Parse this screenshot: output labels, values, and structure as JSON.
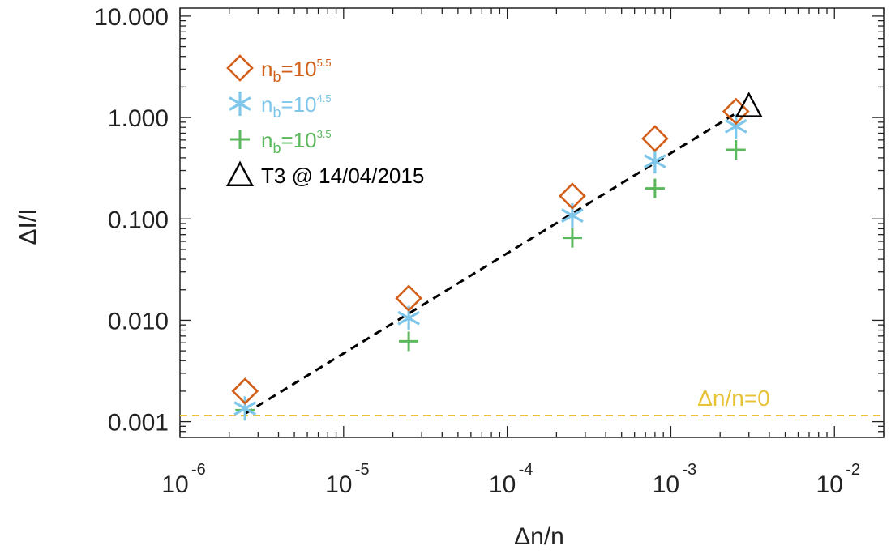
{
  "chart_data": {
    "type": "scatter",
    "xlabel": "Δn/n",
    "ylabel": "ΔI/I",
    "xscale": "log",
    "yscale": "log",
    "xlim": [
      1e-06,
      0.02
    ],
    "ylim": [
      0.0007,
      12
    ],
    "x_ticks": [
      {
        "base": "10",
        "exp": "-6",
        "value": 1e-06
      },
      {
        "base": "10",
        "exp": "-5",
        "value": 1e-05
      },
      {
        "base": "10",
        "exp": "-4",
        "value": 0.0001
      },
      {
        "base": "10",
        "exp": "-3",
        "value": 0.001
      },
      {
        "base": "10",
        "exp": "-2",
        "value": 0.01
      }
    ],
    "y_ticks": [
      {
        "label": "10.000",
        "value": 10
      },
      {
        "label": "1.000",
        "value": 1
      },
      {
        "label": "0.100",
        "value": 0.1
      },
      {
        "label": "0.010",
        "value": 0.01
      },
      {
        "label": "0.001",
        "value": 0.001
      }
    ],
    "series": [
      {
        "base": "n",
        "sub": "b",
        "eq": "=10",
        "sup": "5.5",
        "marker": "diamond",
        "color": "#D2601A",
        "x": [
          2.5e-06,
          2.5e-05,
          0.00025,
          0.0008,
          0.0025
        ],
        "y": [
          0.002,
          0.0165,
          0.168,
          0.62,
          1.15
        ]
      },
      {
        "base": "n",
        "sub": "b",
        "eq": "=10",
        "sup": "4.5",
        "marker": "asterisk",
        "color": "#7EC6EA",
        "x": [
          2.5e-06,
          2.5e-05,
          0.00025,
          0.0008,
          0.0025
        ],
        "y": [
          0.00135,
          0.0105,
          0.108,
          0.37,
          0.82
        ]
      },
      {
        "base": "n",
        "sub": "b",
        "eq": "=10",
        "sup": "3.5",
        "marker": "plus",
        "color": "#5CB85C",
        "x": [
          2.5e-06,
          2.5e-05,
          0.00025,
          0.0008,
          0.0025
        ],
        "y": [
          0.0013,
          0.0062,
          0.065,
          0.2,
          0.48
        ]
      },
      {
        "name": "T3 @ 14/04/2015",
        "marker": "triangle",
        "color": "#000000",
        "x": [
          0.003
        ],
        "y": [
          1.3
        ]
      }
    ],
    "fit_line": {
      "x": [
        2.5e-06,
        0.0025
      ],
      "y": [
        0.0012,
        1.1
      ],
      "style": "dashed",
      "color": "#000000"
    },
    "reference_line": {
      "y": 0.00115,
      "label": "Δn/n=0",
      "color": "#E8C33A",
      "style": "dashed"
    },
    "legend_placement": "top-left",
    "grid": false
  }
}
